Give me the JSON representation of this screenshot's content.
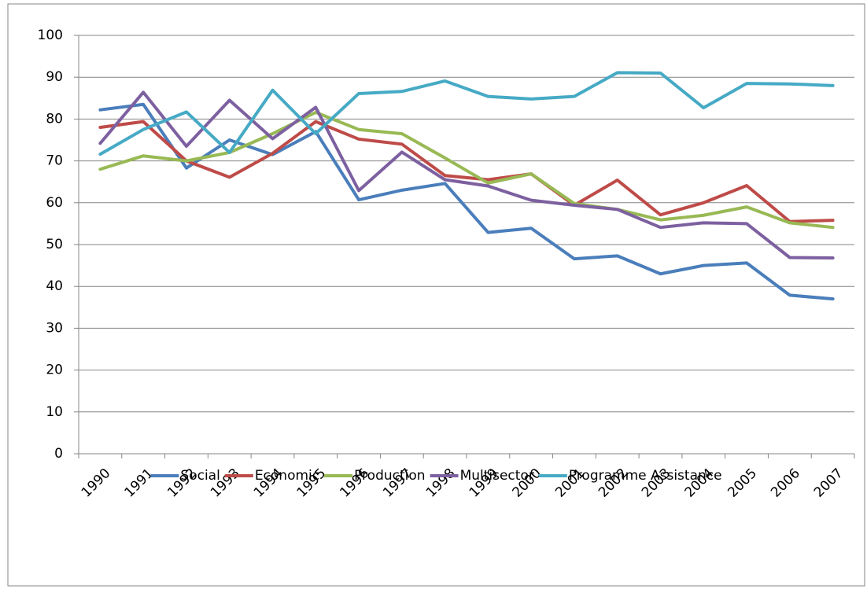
{
  "chart_data": {
    "type": "line",
    "categories": [
      "1990",
      "1991",
      "1992",
      "1993",
      "1994",
      "1995",
      "1996",
      "1997",
      "1998",
      "1999",
      "2000",
      "2001",
      "2002",
      "2003",
      "2004",
      "2005",
      "2006",
      "2007"
    ],
    "series": [
      {
        "name": "Social",
        "color": "#4a7ebb",
        "values": [
          82.2,
          83.5,
          68.3,
          75,
          71.5,
          77,
          60.7,
          63,
          64.6,
          52.9,
          53.9,
          46.6,
          47.3,
          43,
          45,
          45.6,
          37.9,
          37
        ]
      },
      {
        "name": "Economic",
        "color": "#be4b48",
        "values": [
          78,
          79.4,
          70,
          66.1,
          71.8,
          79.4,
          75.2,
          74,
          66.5,
          65.5,
          66.9,
          59.4,
          65.4,
          57.1,
          60,
          64.1,
          55.5,
          55.8
        ]
      },
      {
        "name": "Production",
        "color": "#98b954",
        "values": [
          68,
          71.2,
          70,
          72,
          76.5,
          81.6,
          77.5,
          76.5,
          70.7,
          64.7,
          66.9,
          59.8,
          58.4,
          55.9,
          57,
          59,
          55.2,
          54.1
        ]
      },
      {
        "name": "Multisector",
        "color": "#7d60a0",
        "values": [
          74.2,
          86.4,
          73.5,
          84.5,
          75.3,
          82.8,
          62.9,
          72.1,
          65.5,
          64,
          60.6,
          59.4,
          58.4,
          54.1,
          55.2,
          55,
          46.9,
          46.8
        ]
      },
      {
        "name": "Programme Assistance",
        "color": "#46aac5",
        "values": [
          71.6,
          77.5,
          81.7,
          72,
          86.9,
          76.5,
          86.1,
          86.6,
          89.1,
          85.4,
          84.8,
          85.4,
          91.1,
          91,
          82.7,
          88.5,
          88.4,
          88
        ]
      }
    ],
    "ylim": [
      0,
      100
    ],
    "yticks": [
      0,
      10,
      20,
      30,
      40,
      50,
      60,
      70,
      80,
      90,
      100
    ],
    "grid": true,
    "legend": "bottom"
  }
}
